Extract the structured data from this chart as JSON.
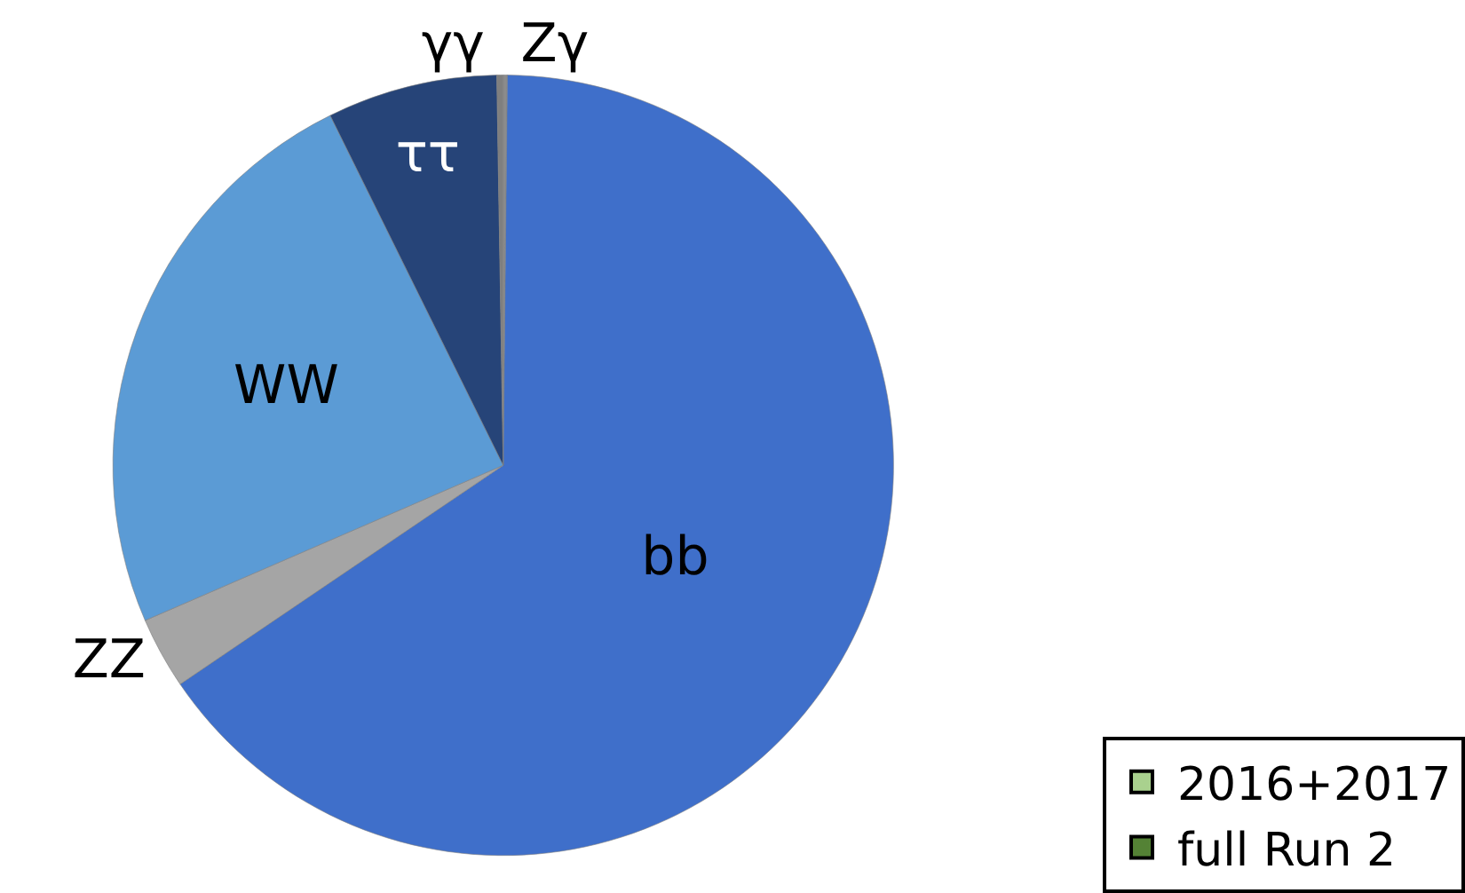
{
  "chart_data": [
    {
      "type": "pie",
      "categories": [
        "Zγ",
        "bb",
        "ZZ",
        "WW",
        "ττ",
        "γγ"
      ],
      "values": [
        0.17,
        65.35,
        2.97,
        24.2,
        7.05,
        0.26
      ],
      "colors": [
        "#8c8c8c",
        "#3f6fca",
        "#a5a5a5",
        "#5b9bd5",
        "#264478",
        "#7f7f7f"
      ]
    },
    {
      "type": "other",
      "legend": "bottom right",
      "series": [
        {
          "name": "2016+2017",
          "color": "#a9d18e"
        },
        {
          "name": "full Run 2",
          "color": "#548235"
        }
      ]
    }
  ]
}
